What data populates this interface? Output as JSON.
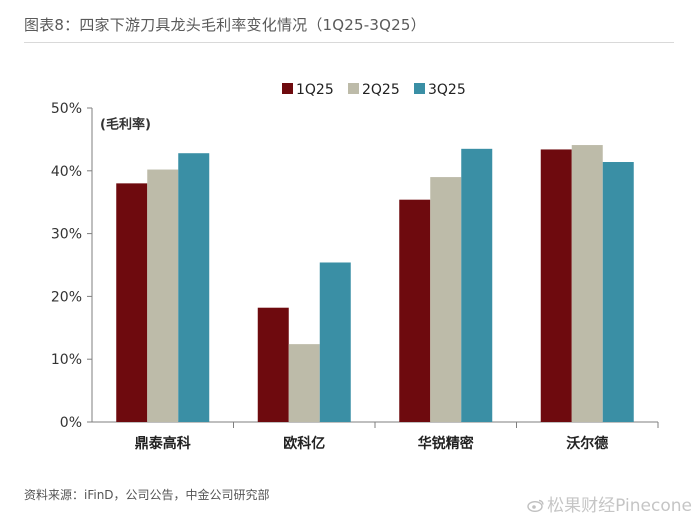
{
  "figure_title": "图表8：四家下游刀具龙头毛利率变化情况（1Q25-3Q25）",
  "source_note": "资料来源：iFinD，公司公告，中金公司研究部",
  "watermark": "松果财经Pinecone",
  "chart_data": {
    "type": "bar",
    "title": "",
    "ylabel": "(毛利率)",
    "xlabel": "",
    "categories": [
      "鼎泰高科",
      "欧科亿",
      "华锐精密",
      "沃尔德"
    ],
    "ylim": [
      0,
      50
    ],
    "yticks": [
      0,
      10,
      20,
      30,
      40,
      50
    ],
    "ytick_labels": [
      "0%",
      "10%",
      "20%",
      "30%",
      "40%",
      "50%"
    ],
    "grid": false,
    "legend_position": "top-center",
    "series": [
      {
        "name": "1Q25",
        "color": "#6e0a0e",
        "values": [
          38.0,
          18.2,
          35.4,
          43.4
        ]
      },
      {
        "name": "2Q25",
        "color": "#bdbba9",
        "values": [
          40.2,
          12.4,
          39.0,
          44.1
        ]
      },
      {
        "name": "3Q25",
        "color": "#3a8fa5",
        "values": [
          42.8,
          25.4,
          43.5,
          41.4
        ]
      }
    ]
  }
}
